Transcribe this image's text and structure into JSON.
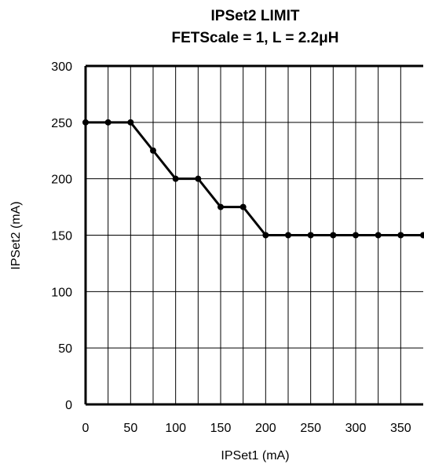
{
  "chart_data": {
    "type": "line",
    "title": "IPSet2 LIMIT",
    "subtitle": "FETScale = 1, L = 2.2μH",
    "xlabel": "IPSet1 (mA)",
    "ylabel": "IPSet2 (mA)",
    "xlim": [
      0,
      375
    ],
    "ylim": [
      0,
      300
    ],
    "x_ticks": [
      "0",
      "50",
      "100",
      "150",
      "200",
      "250",
      "300",
      "350"
    ],
    "y_ticks": [
      "0",
      "50",
      "100",
      "150",
      "200",
      "250",
      "300"
    ],
    "grid": true,
    "legend": "none",
    "series": [
      {
        "x": [
          0,
          25,
          50,
          75,
          100,
          125,
          150,
          175,
          200,
          225,
          250,
          275,
          300,
          325,
          350,
          375
        ],
        "y": [
          250,
          250,
          250,
          225,
          200,
          200,
          175,
          175,
          150,
          150,
          150,
          150,
          150,
          150,
          150,
          150
        ],
        "color": "#000000"
      }
    ]
  }
}
